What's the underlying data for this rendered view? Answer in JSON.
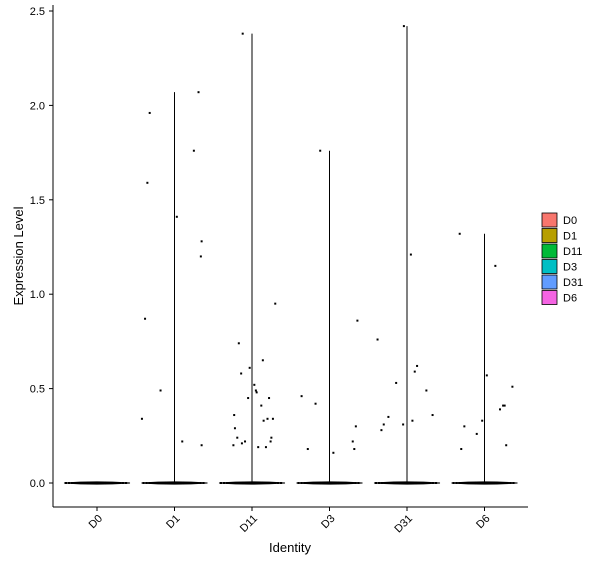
{
  "chart_data": {
    "type": "violin",
    "xlabel": "Identity",
    "ylabel": "Expression Level",
    "ylim": [
      0,
      2.5
    ],
    "yticks": [
      "0.0",
      "0.5",
      "1.0",
      "1.5",
      "2.0",
      "2.5"
    ],
    "ytick_values": [
      0,
      0.5,
      1.0,
      1.5,
      2.0,
      2.5
    ],
    "categories": [
      "D0",
      "D1",
      "D11",
      "D3",
      "D31",
      "D6"
    ],
    "legend": {
      "position": "right",
      "items": [
        {
          "label": "D0",
          "color": "#F8766D"
        },
        {
          "label": "D1",
          "color": "#B79F00"
        },
        {
          "label": "D11",
          "color": "#00BA38"
        },
        {
          "label": "D3",
          "color": "#00BFC4"
        },
        {
          "label": "D31",
          "color": "#619CFF"
        },
        {
          "label": "D6",
          "color": "#F564E3"
        }
      ]
    },
    "series": [
      {
        "name": "D0",
        "max": 0.0,
        "points": []
      },
      {
        "name": "D1",
        "max": 2.07,
        "points": [
          {
            "x": -0.42,
            "y": 0.34
          },
          {
            "x": -0.38,
            "y": 0.87
          },
          {
            "x": -0.35,
            "y": 1.59
          },
          {
            "x": -0.32,
            "y": 1.96
          },
          {
            "x": -0.18,
            "y": 0.49
          },
          {
            "x": 0.03,
            "y": 1.41
          },
          {
            "x": 0.1,
            "y": 0.22
          },
          {
            "x": 0.25,
            "y": 1.76
          },
          {
            "x": 0.31,
            "y": 2.07
          },
          {
            "x": 0.34,
            "y": 1.2
          },
          {
            "x": 0.35,
            "y": 1.28
          },
          {
            "x": 0.35,
            "y": 0.2
          }
        ]
      },
      {
        "name": "D11",
        "max": 2.38,
        "points": [
          {
            "x": -0.24,
            "y": 0.2
          },
          {
            "x": -0.22,
            "y": 0.29
          },
          {
            "x": -0.23,
            "y": 0.36
          },
          {
            "x": -0.19,
            "y": 0.24
          },
          {
            "x": -0.17,
            "y": 0.74
          },
          {
            "x": -0.14,
            "y": 0.58
          },
          {
            "x": -0.13,
            "y": 0.21
          },
          {
            "x": -0.12,
            "y": 2.38
          },
          {
            "x": -0.09,
            "y": 0.22
          },
          {
            "x": -0.05,
            "y": 0.45
          },
          {
            "x": -0.03,
            "y": 0.61
          },
          {
            "x": 0.03,
            "y": 0.52
          },
          {
            "x": 0.05,
            "y": 0.49
          },
          {
            "x": 0.06,
            "y": 0.48
          },
          {
            "x": 0.08,
            "y": 0.19
          },
          {
            "x": 0.12,
            "y": 0.41
          },
          {
            "x": 0.14,
            "y": 0.65
          },
          {
            "x": 0.15,
            "y": 0.33
          },
          {
            "x": 0.18,
            "y": 0.19
          },
          {
            "x": 0.2,
            "y": 0.34
          },
          {
            "x": 0.22,
            "y": 0.45
          },
          {
            "x": 0.24,
            "y": 0.22
          },
          {
            "x": 0.25,
            "y": 0.24
          },
          {
            "x": 0.27,
            "y": 0.34
          },
          {
            "x": 0.3,
            "y": 0.95
          }
        ]
      },
      {
        "name": "D3",
        "max": 1.76,
        "points": [
          {
            "x": -0.36,
            "y": 0.46
          },
          {
            "x": -0.28,
            "y": 0.18
          },
          {
            "x": -0.18,
            "y": 0.42
          },
          {
            "x": -0.12,
            "y": 1.76
          },
          {
            "x": 0.05,
            "y": 0.16
          },
          {
            "x": 0.3,
            "y": 0.22
          },
          {
            "x": 0.32,
            "y": 0.18
          },
          {
            "x": 0.34,
            "y": 0.3
          },
          {
            "x": 0.36,
            "y": 0.86
          }
        ]
      },
      {
        "name": "D31",
        "max": 2.42,
        "points": [
          {
            "x": -0.38,
            "y": 0.76
          },
          {
            "x": -0.33,
            "y": 0.28
          },
          {
            "x": -0.3,
            "y": 0.31
          },
          {
            "x": -0.24,
            "y": 0.35
          },
          {
            "x": -0.14,
            "y": 0.53
          },
          {
            "x": -0.05,
            "y": 0.31
          },
          {
            "x": -0.04,
            "y": 2.42
          },
          {
            "x": 0.05,
            "y": 1.21
          },
          {
            "x": 0.07,
            "y": 0.33
          },
          {
            "x": 0.1,
            "y": 0.59
          },
          {
            "x": 0.13,
            "y": 0.62
          },
          {
            "x": 0.25,
            "y": 0.49
          },
          {
            "x": 0.33,
            "y": 0.36
          }
        ]
      },
      {
        "name": "D6",
        "max": 1.32,
        "points": [
          {
            "x": -0.32,
            "y": 1.32
          },
          {
            "x": -0.3,
            "y": 0.18
          },
          {
            "x": -0.26,
            "y": 0.3
          },
          {
            "x": -0.1,
            "y": 0.26
          },
          {
            "x": -0.03,
            "y": 0.33
          },
          {
            "x": 0.03,
            "y": 0.57
          },
          {
            "x": 0.14,
            "y": 1.15
          },
          {
            "x": 0.2,
            "y": 0.39
          },
          {
            "x": 0.24,
            "y": 0.41
          },
          {
            "x": 0.26,
            "y": 0.41
          },
          {
            "x": 0.28,
            "y": 0.2
          },
          {
            "x": 0.36,
            "y": 0.51
          }
        ]
      }
    ]
  }
}
